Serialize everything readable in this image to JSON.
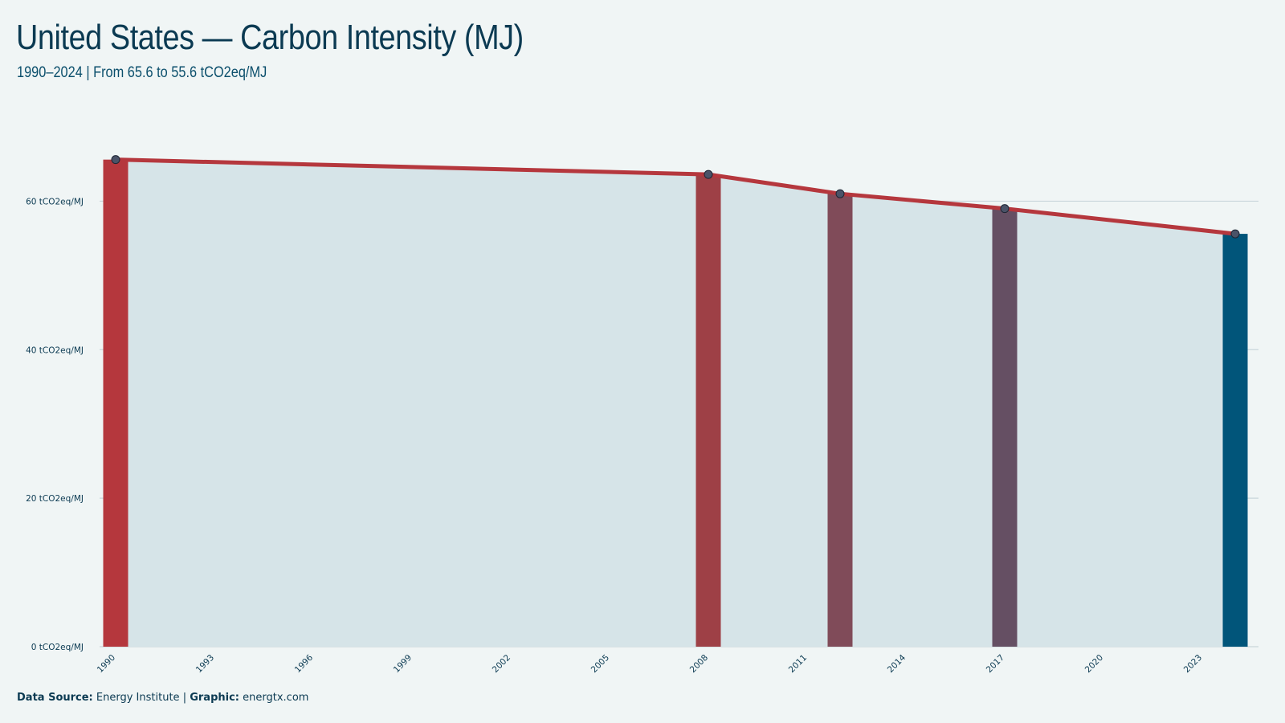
{
  "header": {
    "title": "United States — Carbon Intensity (MJ)",
    "subtitle": "1990–2024 | From 65.6 to 55.6 tCO2eq/MJ"
  },
  "footer": {
    "source_label": "Data Source:",
    "source_value": "Energy Institute",
    "separator": "|",
    "graphic_label": "Graphic:",
    "graphic_value": "energtx.com"
  },
  "chart_data": {
    "type": "bar",
    "unit": "tCO2eq/MJ",
    "x": [
      1990,
      2008,
      2012,
      2017,
      2024
    ],
    "values": [
      65.6,
      63.6,
      61.0,
      59.0,
      55.6
    ],
    "bar_colors": [
      "#b5373d",
      "#9e4046",
      "#804b59",
      "#654f63",
      "#01557a"
    ],
    "line_color": "#b5373d",
    "area_color": "#d6e4e8",
    "xlim": [
      1990,
      2024
    ],
    "ylim": [
      0,
      70
    ],
    "yticks": [
      0,
      20,
      40,
      60
    ],
    "ytick_labels": [
      "0 tCO2eq/MJ",
      "20 tCO2eq/MJ",
      "40 tCO2eq/MJ",
      "60 tCO2eq/MJ"
    ],
    "xticks": [
      1990,
      1993,
      1996,
      1999,
      2002,
      2005,
      2008,
      2011,
      2014,
      2017,
      2020,
      2023
    ],
    "grid": true,
    "legend": "none"
  }
}
